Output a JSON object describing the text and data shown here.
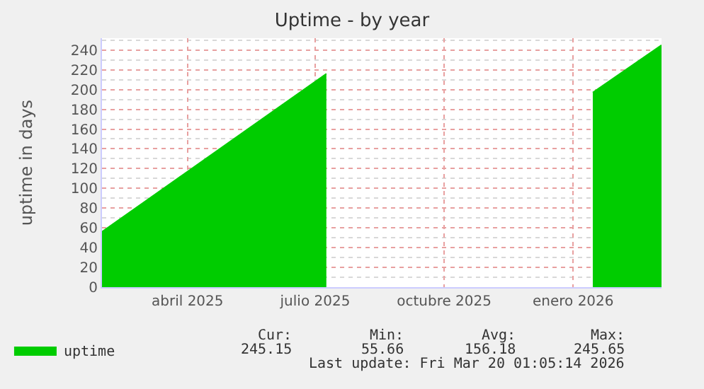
{
  "chart_data": {
    "type": "area",
    "title": "Uptime - by year",
    "ylabel": "uptime in days",
    "x": [
      "2025-02-14",
      "2025-07-24",
      "2025-07-25",
      "2026-01-30",
      "2026-03-20"
    ],
    "series": [
      {
        "name": "uptime",
        "color": "#00cc00",
        "values": [
          56,
          216,
          null,
          197,
          245
        ]
      }
    ],
    "xlim": [
      "2025-02-14",
      "2026-03-20"
    ],
    "xticks": [
      {
        "value": "2025-04-16",
        "label": "abril 2025"
      },
      {
        "value": "2025-07-16",
        "label": "julio 2025"
      },
      {
        "value": "2025-10-16",
        "label": "octubre 2025"
      },
      {
        "value": "2026-01-16",
        "label": "enero 2026"
      }
    ],
    "ylim": [
      0,
      252
    ],
    "yticks": [
      0,
      20,
      40,
      60,
      80,
      100,
      120,
      140,
      160,
      180,
      200,
      220,
      240
    ],
    "grid": true,
    "legend": "bottom left",
    "annotations": [
      "Cur:",
      "Min:",
      "Avg:",
      "Max:",
      "245.15",
      "55.66",
      "156.18",
      "245.65",
      "Last update: Fri Mar 20 01:05:14 2026"
    ]
  }
}
